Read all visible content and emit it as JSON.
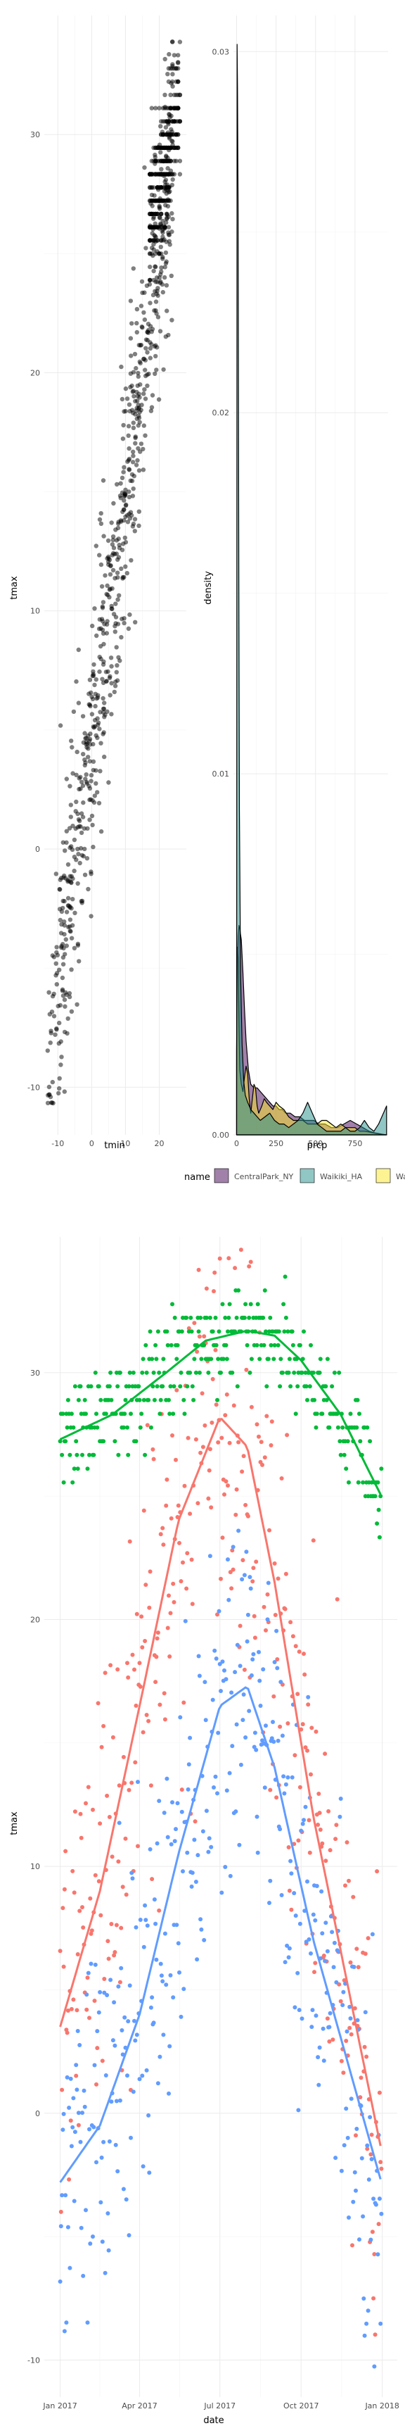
{
  "chart_data": [
    {
      "type": "scatter",
      "xlabel": "tmin",
      "ylabel": "tmax",
      "xlim": [
        -14,
        28
      ],
      "ylim": [
        -12,
        35
      ],
      "x_ticks": [
        "-10",
        "0",
        "10",
        "20"
      ],
      "y_ticks": [
        "-10",
        "0",
        "10",
        "20",
        "30"
      ],
      "point_color": "#000000",
      "point_alpha": 0.5,
      "trend": {
        "intercept": 4.7,
        "slope": 1.03
      },
      "points_estimated": 1095
    },
    {
      "type": "area",
      "xlabel": "prcp",
      "ylabel": "density",
      "xlim": [
        -20,
        960
      ],
      "ylim": [
        0,
        0.031
      ],
      "x_ticks": [
        "0",
        "250",
        "500",
        "750"
      ],
      "y_ticks": [
        "0.00",
        "0.01",
        "0.02",
        "0.03"
      ],
      "series": [
        {
          "name": "CentralPark_NY",
          "color": "#440154",
          "x": [
            0,
            5,
            10,
            15,
            20,
            30,
            40,
            50,
            60,
            75,
            90,
            110,
            130,
            150,
            170,
            190,
            210,
            230,
            250,
            270,
            290,
            310,
            340,
            370,
            400,
            430,
            460,
            490,
            520,
            560,
            600,
            640,
            680,
            720,
            760,
            800,
            840,
            880,
            920,
            950
          ],
          "y": [
            0.0023,
            0.0047,
            0.0055,
            0.0058,
            0.0057,
            0.0054,
            0.0045,
            0.0035,
            0.0026,
            0.0018,
            0.0014,
            0.0013,
            0.0013,
            0.0012,
            0.0011,
            0.001,
            0.0009,
            0.0008,
            0.0008,
            0.0007,
            0.0007,
            0.0006,
            0.0006,
            0.0005,
            0.0005,
            0.0004,
            0.0004,
            0.0004,
            0.0003,
            0.0003,
            0.0002,
            0.0002,
            0.0003,
            0.0004,
            0.0003,
            0.0002,
            0.0001,
            5e-05,
            2e-05,
            0.0
          ]
        },
        {
          "name": "Waikiki_HA",
          "color": "#21908c",
          "x": [
            0,
            3,
            6,
            10,
            14,
            18,
            25,
            35,
            45,
            55,
            70,
            90,
            110,
            130,
            150,
            180,
            210,
            240,
            270,
            300,
            330,
            360,
            390,
            420,
            450,
            480,
            510,
            540,
            570,
            600,
            630,
            660,
            690,
            720,
            750,
            780,
            810,
            840,
            870,
            900,
            930,
            950
          ],
          "y": [
            0.0,
            0.0302,
            0.029,
            0.0255,
            0.016,
            0.009,
            0.0045,
            0.0025,
            0.0015,
            0.0011,
            0.0009,
            0.0007,
            0.0006,
            0.0005,
            0.0004,
            0.0005,
            0.0006,
            0.0004,
            0.0003,
            0.0003,
            0.0002,
            0.0003,
            0.0004,
            0.0006,
            0.0009,
            0.0006,
            0.0003,
            0.0002,
            0.0001,
            0.0001,
            0.0001,
            0.0001,
            0.0002,
            0.0001,
            0.0001,
            0.0002,
            0.0004,
            0.0002,
            0.0001,
            0.0003,
            0.0006,
            0.0008
          ]
        },
        {
          "name": "Waterhole_WA",
          "color": "#fde725",
          "x": [
            0,
            5,
            10,
            15,
            20,
            30,
            40,
            50,
            60,
            70,
            80,
            90,
            100,
            110,
            120,
            130,
            140,
            150,
            160,
            175,
            190,
            210,
            230,
            250,
            270,
            300,
            330,
            360,
            390,
            420,
            450,
            480,
            510,
            540,
            570,
            600,
            630,
            660,
            690,
            720,
            750,
            780,
            810,
            840,
            870,
            900,
            930,
            950
          ],
          "y": [
            0.0025,
            0.0052,
            0.0049,
            0.003,
            0.0018,
            0.0014,
            0.0012,
            0.0016,
            0.0019,
            0.0017,
            0.001,
            0.0006,
            0.001,
            0.0014,
            0.0013,
            0.0008,
            0.0006,
            0.0007,
            0.0008,
            0.001,
            0.0009,
            0.0008,
            0.0007,
            0.0009,
            0.0008,
            0.0007,
            0.0005,
            0.0004,
            0.0004,
            0.0004,
            0.0003,
            0.0003,
            0.0003,
            0.0004,
            0.0004,
            0.0003,
            0.0002,
            0.0003,
            0.0002,
            0.0002,
            0.0002,
            0.0001,
            0.0001,
            8e-05,
            5e-05,
            3e-05,
            1e-05,
            0.0
          ]
        }
      ],
      "fill_alpha": 0.5
    },
    {
      "type": "scatter",
      "xlabel": "date",
      "ylabel": "tmax",
      "x_ticks": [
        "Jan 2017",
        "Apr 2017",
        "Jul 2017",
        "Oct 2017",
        "Jan 2018"
      ],
      "x_tick_dates": [
        "2017-01-01",
        "2017-04-01",
        "2017-07-01",
        "2017-10-01",
        "2018-01-01"
      ],
      "xlim": [
        "2016-12-14",
        "2018-01-18"
      ],
      "ylim": [
        -11.5,
        35.5
      ],
      "y_ticks": [
        "-10",
        "0",
        "10",
        "20",
        "30"
      ],
      "series": [
        {
          "name": "CentralPark_NY",
          "color": "#f8766d",
          "smooth_x": [
            "2017-01-01",
            "2017-02-15",
            "2017-04-01",
            "2017-05-15",
            "2017-07-01",
            "2017-08-01",
            "2017-09-01",
            "2017-10-15",
            "2017-12-31"
          ],
          "smooth_y": [
            3.5,
            9.0,
            16.5,
            24.0,
            28.2,
            27.0,
            21.5,
            12.0,
            -1.5
          ]
        },
        {
          "name": "Waikiki_HA",
          "color": "#00ba38",
          "smooth_x": [
            "2017-01-01",
            "2017-03-01",
            "2017-05-01",
            "2017-06-15",
            "2017-08-01",
            "2017-09-01",
            "2017-10-01",
            "2017-11-15",
            "2017-12-31"
          ],
          "smooth_y": [
            27.3,
            28.3,
            30.0,
            31.3,
            31.7,
            31.5,
            30.5,
            28.3,
            25.0
          ]
        },
        {
          "name": "Waterhole_WA",
          "color": "#619cff",
          "smooth_x": [
            "2017-01-01",
            "2017-02-15",
            "2017-04-01",
            "2017-05-15",
            "2017-07-01",
            "2017-08-01",
            "2017-09-01",
            "2017-10-15",
            "2017-12-31"
          ],
          "smooth_y": [
            -2.8,
            -0.5,
            4.0,
            10.5,
            16.5,
            17.3,
            14.0,
            7.0,
            -2.8
          ]
        }
      ]
    }
  ],
  "legend": {
    "title": "name",
    "items": [
      {
        "label": "CentralPark_NY",
        "color": "#440154"
      },
      {
        "label": "Waikiki_HA",
        "color": "#21908c"
      },
      {
        "label": "Wa",
        "color": "#fde725"
      }
    ],
    "position": "top, clipped at right edge"
  }
}
